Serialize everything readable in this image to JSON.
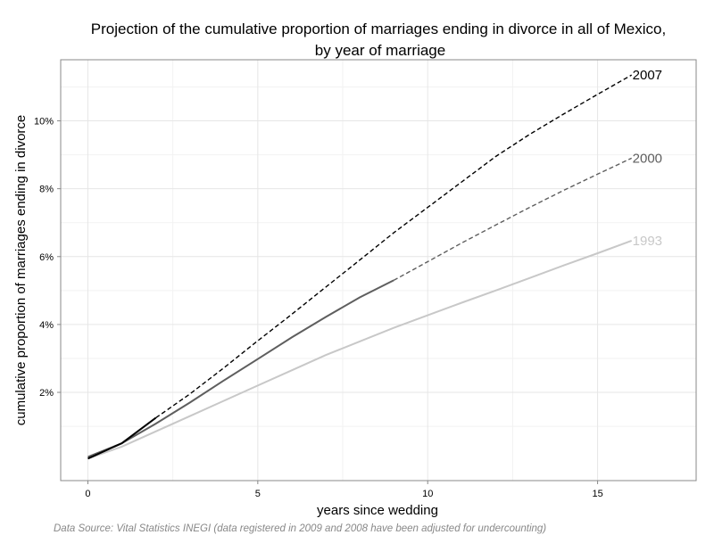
{
  "chart_data": {
    "type": "line",
    "title_line1": "Projection of the cumulative proportion of marriages ending in divorce in all of Mexico,",
    "title_line2": "by year of marriage",
    "xlabel": "years since wedding",
    "ylabel": "cumulative proportion of marriages ending in divorce",
    "xlim": [
      -0.8,
      17.9
    ],
    "ylim": [
      -0.6,
      11.8
    ],
    "x_ticks": [
      0,
      5,
      10,
      15
    ],
    "x_tick_labels": [
      "0",
      "5",
      "10",
      "15"
    ],
    "y_ticks": [
      2,
      4,
      6,
      8,
      10
    ],
    "y_tick_labels": [
      "2%",
      "4%",
      "6%",
      "8%",
      "10%"
    ],
    "grid": true,
    "legend": "direct labels at line ends",
    "source": "Data Source: Vital Statistics INEGI (data registered in 2009 and 2008 have been adjusted for undercounting)",
    "series": [
      {
        "name": "1993",
        "color": "#c8c8c8",
        "observed": [
          [
            0,
            0.05
          ],
          [
            1,
            0.4
          ],
          [
            2,
            0.85
          ],
          [
            3,
            1.3
          ],
          [
            4,
            1.75
          ],
          [
            5,
            2.2
          ],
          [
            6,
            2.65
          ],
          [
            7,
            3.1
          ],
          [
            8,
            3.5
          ],
          [
            9,
            3.9
          ],
          [
            10,
            4.27
          ],
          [
            11,
            4.64
          ],
          [
            12,
            5.0
          ],
          [
            13,
            5.37
          ],
          [
            14,
            5.74
          ],
          [
            15,
            6.1
          ],
          [
            16,
            6.47
          ]
        ],
        "projected": []
      },
      {
        "name": "2000",
        "color": "#5e5e5e",
        "observed": [
          [
            0,
            0.1
          ],
          [
            1,
            0.5
          ],
          [
            2,
            1.08
          ],
          [
            3,
            1.7
          ],
          [
            4,
            2.35
          ],
          [
            5,
            2.98
          ],
          [
            6,
            3.62
          ],
          [
            7,
            4.22
          ],
          [
            8,
            4.8
          ],
          [
            9,
            5.3
          ]
        ],
        "projected": [
          [
            9,
            5.3
          ],
          [
            10,
            5.85
          ],
          [
            11,
            6.4
          ],
          [
            12,
            6.93
          ],
          [
            13,
            7.45
          ],
          [
            14,
            7.95
          ],
          [
            15,
            8.43
          ],
          [
            16,
            8.9
          ]
        ]
      },
      {
        "name": "2007",
        "color": "#000000",
        "observed": [
          [
            0,
            0.05
          ],
          [
            1,
            0.5
          ],
          [
            2,
            1.25
          ]
        ],
        "projected": [
          [
            2,
            1.25
          ],
          [
            3,
            1.95
          ],
          [
            4,
            2.72
          ],
          [
            5,
            3.52
          ],
          [
            6,
            4.3
          ],
          [
            7,
            5.1
          ],
          [
            8,
            5.9
          ],
          [
            9,
            6.7
          ],
          [
            10,
            7.45
          ],
          [
            11,
            8.2
          ],
          [
            12,
            8.95
          ],
          [
            13,
            9.6
          ],
          [
            14,
            10.2
          ],
          [
            15,
            10.78
          ],
          [
            16,
            11.35
          ]
        ]
      }
    ]
  }
}
